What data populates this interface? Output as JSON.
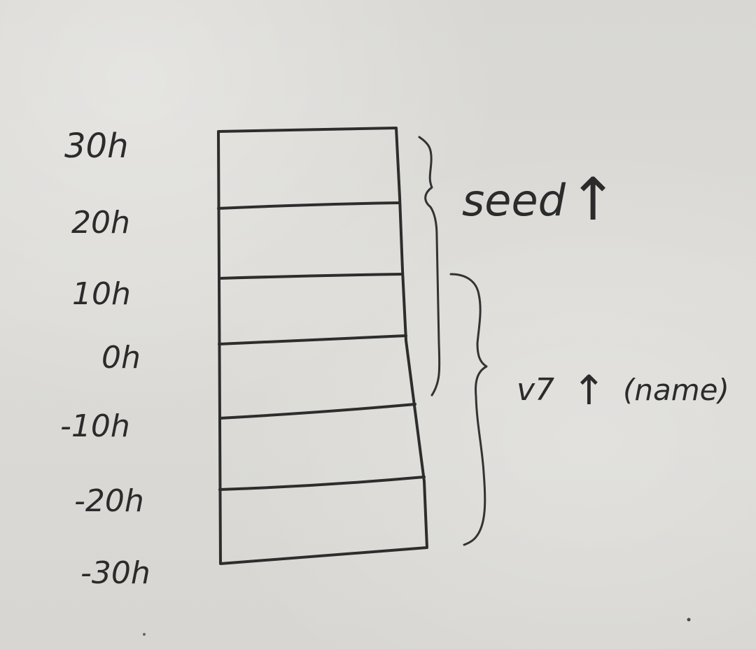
{
  "diagram": {
    "address_labels": [
      "30h",
      "20h",
      "10h",
      "0h",
      "-10h",
      "-20h",
      "-30h"
    ],
    "annotations": {
      "upper": {
        "text": "seed",
        "arrow": "↑"
      },
      "lower": {
        "text": "v7",
        "arrow": "↑",
        "note": "(name)"
      }
    },
    "colors": {
      "paper": "#d8d7d3",
      "ink": "#2d2d2d"
    }
  }
}
